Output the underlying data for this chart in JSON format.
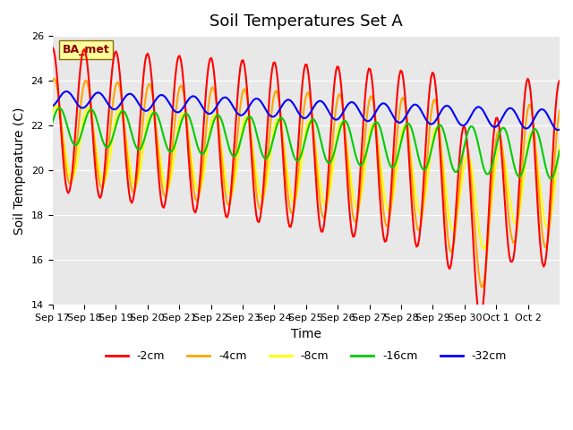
{
  "title": "Soil Temperatures Set A",
  "xlabel": "Time",
  "ylabel": "Soil Temperature (C)",
  "ylim": [
    14,
    26
  ],
  "n_days": 16,
  "xtick_labels": [
    "Sep 17",
    "Sep 18",
    "Sep 19",
    "Sep 20",
    "Sep 21",
    "Sep 22",
    "Sep 23",
    "Sep 24",
    "Sep 25",
    "Sep 26",
    "Sep 27",
    "Sep 28",
    "Sep 29",
    "Sep 30",
    "Oct 1",
    "Oct 2"
  ],
  "ytick_values": [
    14,
    16,
    18,
    20,
    22,
    24,
    26
  ],
  "legend_labels": [
    "-2cm",
    "-4cm",
    "-8cm",
    "-16cm",
    "-32cm"
  ],
  "legend_colors": [
    "#FF0000",
    "#FFA500",
    "#FFFF00",
    "#00CC00",
    "#0000FF"
  ],
  "annotation_text": "BA_met",
  "annotation_color": "#8B0000",
  "annotation_bg": "#FFFF99",
  "annotation_edge": "#8B6914",
  "background_color": "#E8E8E8",
  "title_fontsize": 13,
  "axis_label_fontsize": 10,
  "tick_fontsize": 8,
  "line_width": 1.5
}
